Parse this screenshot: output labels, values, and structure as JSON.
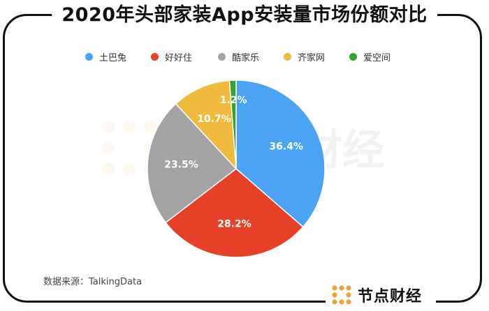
{
  "title": "2020年头部家装App安装量市场份额对比",
  "source": "数据来源：TalkingData",
  "brand": {
    "name": "节点财经",
    "color": "#E8A33B",
    "icon": "dots-grid-logo-icon"
  },
  "watermark": "财经",
  "chart_data": {
    "type": "pie",
    "title": "2020年头部家装App安装量市场份额对比",
    "labels": [
      "土巴兔",
      "好好住",
      "酷家乐",
      "齐家网",
      "爱空间"
    ],
    "values": [
      36.4,
      28.2,
      23.5,
      10.7,
      1.2
    ],
    "value_labels": [
      "36.4%",
      "28.2%",
      "23.5%",
      "10.7%",
      "1.2%"
    ],
    "colors": [
      "#4AA3F5",
      "#E64127",
      "#A3A3A3",
      "#F0BA3C",
      "#33A42F"
    ],
    "unit": "%",
    "start": "12 o'clock",
    "direction": "clockwise",
    "legend": "top"
  }
}
